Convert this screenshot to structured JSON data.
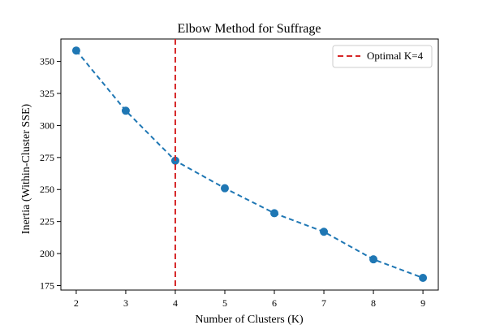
{
  "chart_data": {
    "type": "line",
    "title": "Elbow Method for Suffrage",
    "xlabel": "Number of Clusters (K)",
    "ylabel": "Inertia (Within-Cluster SSE)",
    "x": [
      2,
      3,
      4,
      5,
      6,
      7,
      8,
      9
    ],
    "series": [
      {
        "values": [
          358.5,
          311.5,
          272.5,
          251,
          231.5,
          217,
          195.5,
          181
        ],
        "color": "#1f77b4",
        "linestyle": "dashed",
        "marker": "circle"
      }
    ],
    "xlim": [
      1.69,
      9.31
    ],
    "ylim": [
      171.5,
      367.5
    ],
    "xticks": [
      2,
      3,
      4,
      5,
      6,
      7,
      8,
      9
    ],
    "yticks": [
      175,
      200,
      225,
      250,
      275,
      300,
      325,
      350
    ],
    "grid": false,
    "vline": {
      "x": 4,
      "label": "Optimal K=4",
      "color": "#d62728",
      "linestyle": "dashed"
    },
    "legend": {
      "position": "top-right",
      "entries": [
        "Optimal K=4"
      ]
    }
  }
}
